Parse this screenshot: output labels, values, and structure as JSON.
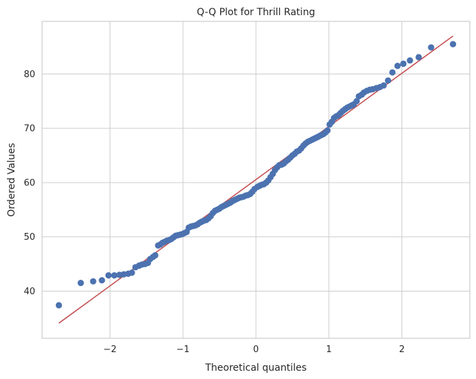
{
  "chart_data": {
    "type": "scatter",
    "title": "Q-Q Plot for Thrill Rating",
    "xlabel": "Theoretical quantiles",
    "ylabel": "Ordered Values",
    "xlim": [
      -2.93,
      2.93
    ],
    "ylim": [
      31.3,
      89.7
    ],
    "x_ticks": [
      -2,
      -1,
      0,
      1,
      2
    ],
    "y_ticks": [
      40,
      50,
      60,
      70,
      80
    ],
    "x_tick_labels": [
      "−2",
      "−1",
      "0",
      "1",
      "2"
    ],
    "y_tick_labels": [
      "40",
      "50",
      "60",
      "70",
      "80"
    ],
    "grid": true,
    "point_color": "#4c72b0",
    "line_color": "#c44e52",
    "fit_line": {
      "x": [
        -2.7,
        2.7
      ],
      "y": [
        34.1,
        87.0
      ]
    },
    "points": [
      {
        "x": -2.7,
        "y": 37.4
      },
      {
        "x": -2.4,
        "y": 41.5
      },
      {
        "x": -2.23,
        "y": 41.8
      },
      {
        "x": -2.11,
        "y": 42.0
      },
      {
        "x": -2.02,
        "y": 42.9
      },
      {
        "x": -1.94,
        "y": 42.9
      },
      {
        "x": -1.87,
        "y": 43.0
      },
      {
        "x": -1.81,
        "y": 43.1
      },
      {
        "x": -1.75,
        "y": 43.2
      },
      {
        "x": -1.7,
        "y": 43.4
      },
      {
        "x": -1.65,
        "y": 44.4
      },
      {
        "x": -1.6,
        "y": 44.7
      },
      {
        "x": -1.56,
        "y": 44.9
      },
      {
        "x": -1.52,
        "y": 45.0
      },
      {
        "x": -1.48,
        "y": 45.2
      },
      {
        "x": -1.45,
        "y": 45.9
      },
      {
        "x": -1.41,
        "y": 46.3
      },
      {
        "x": -1.38,
        "y": 46.6
      },
      {
        "x": -1.34,
        "y": 48.4
      },
      {
        "x": -1.31,
        "y": 48.6
      },
      {
        "x": -1.28,
        "y": 48.9
      },
      {
        "x": -1.25,
        "y": 49.1
      },
      {
        "x": -1.22,
        "y": 49.3
      },
      {
        "x": -1.19,
        "y": 49.4
      },
      {
        "x": -1.16,
        "y": 49.6
      },
      {
        "x": -1.13,
        "y": 49.9
      },
      {
        "x": -1.1,
        "y": 50.2
      },
      {
        "x": -1.07,
        "y": 50.3
      },
      {
        "x": -1.04,
        "y": 50.4
      },
      {
        "x": -1.01,
        "y": 50.5
      },
      {
        "x": -0.98,
        "y": 50.7
      },
      {
        "x": -0.95,
        "y": 50.9
      },
      {
        "x": -0.92,
        "y": 51.7
      },
      {
        "x": -0.89,
        "y": 51.9
      },
      {
        "x": -0.86,
        "y": 52.0
      },
      {
        "x": -0.83,
        "y": 52.1
      },
      {
        "x": -0.8,
        "y": 52.3
      },
      {
        "x": -0.77,
        "y": 52.6
      },
      {
        "x": -0.74,
        "y": 52.8
      },
      {
        "x": -0.71,
        "y": 53.0
      },
      {
        "x": -0.68,
        "y": 53.1
      },
      {
        "x": -0.65,
        "y": 53.4
      },
      {
        "x": -0.62,
        "y": 53.8
      },
      {
        "x": -0.59,
        "y": 54.4
      },
      {
        "x": -0.56,
        "y": 54.8
      },
      {
        "x": -0.53,
        "y": 55.0
      },
      {
        "x": -0.5,
        "y": 55.2
      },
      {
        "x": -0.47,
        "y": 55.5
      },
      {
        "x": -0.44,
        "y": 55.7
      },
      {
        "x": -0.41,
        "y": 55.9
      },
      {
        "x": -0.38,
        "y": 56.1
      },
      {
        "x": -0.35,
        "y": 56.3
      },
      {
        "x": -0.32,
        "y": 56.6
      },
      {
        "x": -0.29,
        "y": 56.8
      },
      {
        "x": -0.26,
        "y": 57.0
      },
      {
        "x": -0.23,
        "y": 57.2
      },
      {
        "x": -0.2,
        "y": 57.3
      },
      {
        "x": -0.17,
        "y": 57.4
      },
      {
        "x": -0.14,
        "y": 57.6
      },
      {
        "x": -0.11,
        "y": 57.7
      },
      {
        "x": -0.08,
        "y": 57.9
      },
      {
        "x": -0.05,
        "y": 58.3
      },
      {
        "x": -0.02,
        "y": 58.8
      },
      {
        "x": 0.02,
        "y": 59.2
      },
      {
        "x": 0.05,
        "y": 59.4
      },
      {
        "x": 0.08,
        "y": 59.6
      },
      {
        "x": 0.11,
        "y": 59.7
      },
      {
        "x": 0.14,
        "y": 60.0
      },
      {
        "x": 0.17,
        "y": 60.4
      },
      {
        "x": 0.2,
        "y": 61.0
      },
      {
        "x": 0.23,
        "y": 61.6
      },
      {
        "x": 0.26,
        "y": 62.3
      },
      {
        "x": 0.29,
        "y": 62.8
      },
      {
        "x": 0.32,
        "y": 63.2
      },
      {
        "x": 0.35,
        "y": 63.3
      },
      {
        "x": 0.38,
        "y": 63.5
      },
      {
        "x": 0.41,
        "y": 63.9
      },
      {
        "x": 0.44,
        "y": 64.2
      },
      {
        "x": 0.47,
        "y": 64.6
      },
      {
        "x": 0.5,
        "y": 65.0
      },
      {
        "x": 0.53,
        "y": 65.3
      },
      {
        "x": 0.56,
        "y": 65.7
      },
      {
        "x": 0.59,
        "y": 65.9
      },
      {
        "x": 0.62,
        "y": 66.3
      },
      {
        "x": 0.65,
        "y": 66.8
      },
      {
        "x": 0.68,
        "y": 67.2
      },
      {
        "x": 0.71,
        "y": 67.5
      },
      {
        "x": 0.74,
        "y": 67.7
      },
      {
        "x": 0.77,
        "y": 67.9
      },
      {
        "x": 0.8,
        "y": 68.1
      },
      {
        "x": 0.83,
        "y": 68.3
      },
      {
        "x": 0.86,
        "y": 68.5
      },
      {
        "x": 0.89,
        "y": 68.7
      },
      {
        "x": 0.92,
        "y": 68.9
      },
      {
        "x": 0.95,
        "y": 69.2
      },
      {
        "x": 0.98,
        "y": 69.6
      },
      {
        "x": 1.01,
        "y": 70.7
      },
      {
        "x": 1.04,
        "y": 71.2
      },
      {
        "x": 1.07,
        "y": 71.9
      },
      {
        "x": 1.1,
        "y": 72.2
      },
      {
        "x": 1.13,
        "y": 72.4
      },
      {
        "x": 1.16,
        "y": 72.8
      },
      {
        "x": 1.19,
        "y": 73.2
      },
      {
        "x": 1.22,
        "y": 73.5
      },
      {
        "x": 1.25,
        "y": 73.8
      },
      {
        "x": 1.28,
        "y": 74.0
      },
      {
        "x": 1.31,
        "y": 74.2
      },
      {
        "x": 1.34,
        "y": 74.4
      },
      {
        "x": 1.38,
        "y": 75.0
      },
      {
        "x": 1.41,
        "y": 75.9
      },
      {
        "x": 1.45,
        "y": 76.2
      },
      {
        "x": 1.48,
        "y": 76.6
      },
      {
        "x": 1.52,
        "y": 76.9
      },
      {
        "x": 1.56,
        "y": 77.1
      },
      {
        "x": 1.6,
        "y": 77.2
      },
      {
        "x": 1.65,
        "y": 77.4
      },
      {
        "x": 1.7,
        "y": 77.6
      },
      {
        "x": 1.75,
        "y": 77.9
      },
      {
        "x": 1.81,
        "y": 78.8
      },
      {
        "x": 1.87,
        "y": 80.3
      },
      {
        "x": 1.94,
        "y": 81.5
      },
      {
        "x": 2.02,
        "y": 81.9
      },
      {
        "x": 2.11,
        "y": 82.5
      },
      {
        "x": 2.23,
        "y": 83.1
      },
      {
        "x": 2.4,
        "y": 84.9
      },
      {
        "x": 2.7,
        "y": 85.5
      }
    ]
  }
}
